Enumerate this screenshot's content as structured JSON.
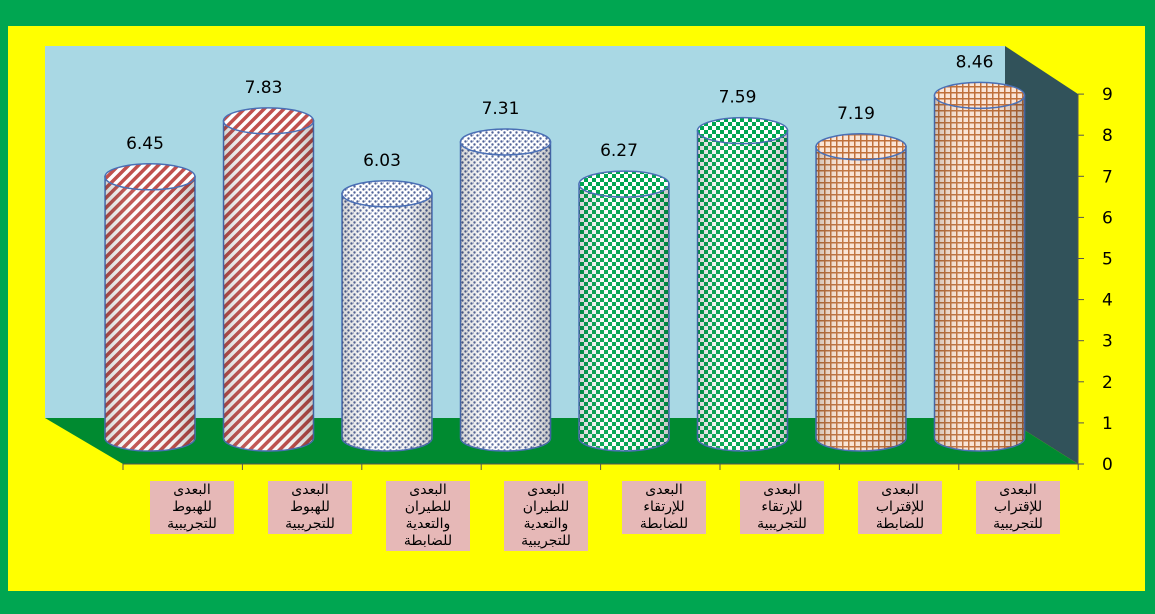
{
  "chart_data": {
    "type": "bar",
    "style": "3d-cylinder",
    "categories": [
      "البعدى للهبوط للتجريبية",
      "البعدى للهبوط للتجريبية",
      "البعدى للطيران والتعدية للضابطة",
      "البعدى للطيران والتعدية للتجريبية",
      "البعدى للإرتقاء للضابطة",
      "البعدى للإرتقاء للتجريبية",
      "البعدى للإقتراب للضابطة",
      "البعدى للإقتراب للتجريبية"
    ],
    "category_lines": [
      [
        "البعدى",
        "للهبوط",
        "للتجريبية"
      ],
      [
        "البعدى",
        "للهبوط",
        "للتجريبية"
      ],
      [
        "البعدى",
        "للطيران",
        "والتعدية",
        "للضابطة"
      ],
      [
        "البعدى",
        "للطيران",
        "والتعدية",
        "للتجريبية"
      ],
      [
        "البعدى",
        "للإرتقاء",
        "للضابطة"
      ],
      [
        "البعدى",
        "للإرتقاء",
        "للتجريبية"
      ],
      [
        "البعدى",
        "للإقتراب",
        "للضابطة"
      ],
      [
        "البعدى",
        "للإقتراب",
        "للتجريبية"
      ]
    ],
    "values": [
      6.45,
      7.83,
      6.03,
      7.31,
      6.27,
      7.59,
      7.19,
      8.46
    ],
    "data_labels": [
      "6.45",
      "7.83",
      "6.03",
      "7.31",
      "6.27",
      "7.59",
      "7.19",
      "8.46"
    ],
    "bar_colors": [
      "#c0504d",
      "#c0504d",
      "#4f6298",
      "#4f6298",
      "#00a651",
      "#00a651",
      "#c0703a",
      "#c0703a"
    ],
    "bar_patterns": [
      "diagonal",
      "diagonal",
      "dots",
      "dots",
      "checker",
      "checker",
      "grid",
      "grid"
    ],
    "ylim": [
      0,
      9
    ],
    "yticks": [
      "0",
      "1",
      "2",
      "3",
      "4",
      "5",
      "6",
      "7",
      "8",
      "9"
    ],
    "title": "",
    "xlabel": "",
    "ylabel": "",
    "grid": false,
    "legend": "none",
    "colors": {
      "outer_background": "#00a651",
      "frame_background": "#ffff00",
      "back_wall": "#a9d8e4",
      "side_wall": "#31525a",
      "floor": "#008a30",
      "label_background": "#e6b8b7"
    }
  }
}
